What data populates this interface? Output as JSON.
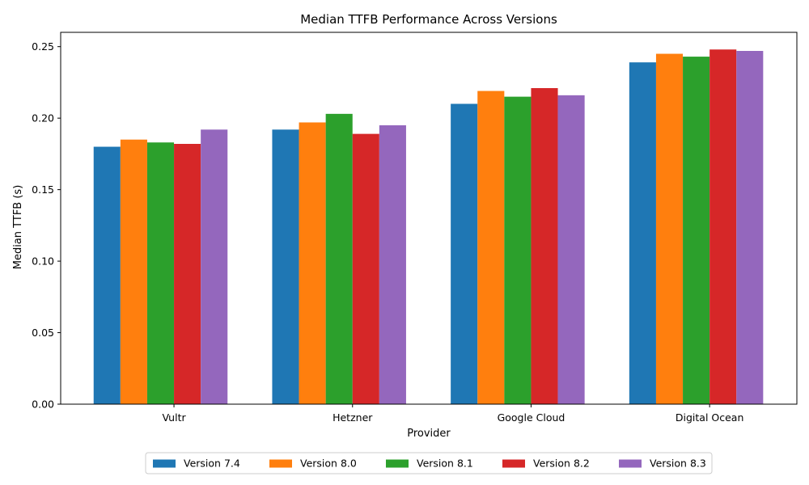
{
  "chart_data": {
    "type": "bar",
    "title": "Median TTFB Performance Across Versions",
    "xlabel": "Provider",
    "ylabel": "Median TTFB (s)",
    "categories": [
      "Vultr",
      "Hetzner",
      "Google Cloud",
      "Digital Ocean"
    ],
    "ylim": [
      0,
      0.26
    ],
    "yticks": [
      0.0,
      0.05,
      0.1,
      0.15,
      0.2,
      0.25
    ],
    "ytick_labels": [
      "0.00",
      "0.05",
      "0.10",
      "0.15",
      "0.20",
      "0.25"
    ],
    "grid": false,
    "legend_position": "bottom-center",
    "series": [
      {
        "name": "Version 7.4",
        "color": "#1f77b4",
        "values": [
          0.18,
          0.192,
          0.21,
          0.239
        ]
      },
      {
        "name": "Version 8.0",
        "color": "#ff7f0e",
        "values": [
          0.185,
          0.197,
          0.219,
          0.245
        ]
      },
      {
        "name": "Version 8.1",
        "color": "#2ca02c",
        "values": [
          0.183,
          0.203,
          0.215,
          0.243
        ]
      },
      {
        "name": "Version 8.2",
        "color": "#d62728",
        "values": [
          0.182,
          0.189,
          0.221,
          0.248
        ]
      },
      {
        "name": "Version 8.3",
        "color": "#9467bd",
        "values": [
          0.192,
          0.195,
          0.216,
          0.247
        ]
      }
    ]
  }
}
